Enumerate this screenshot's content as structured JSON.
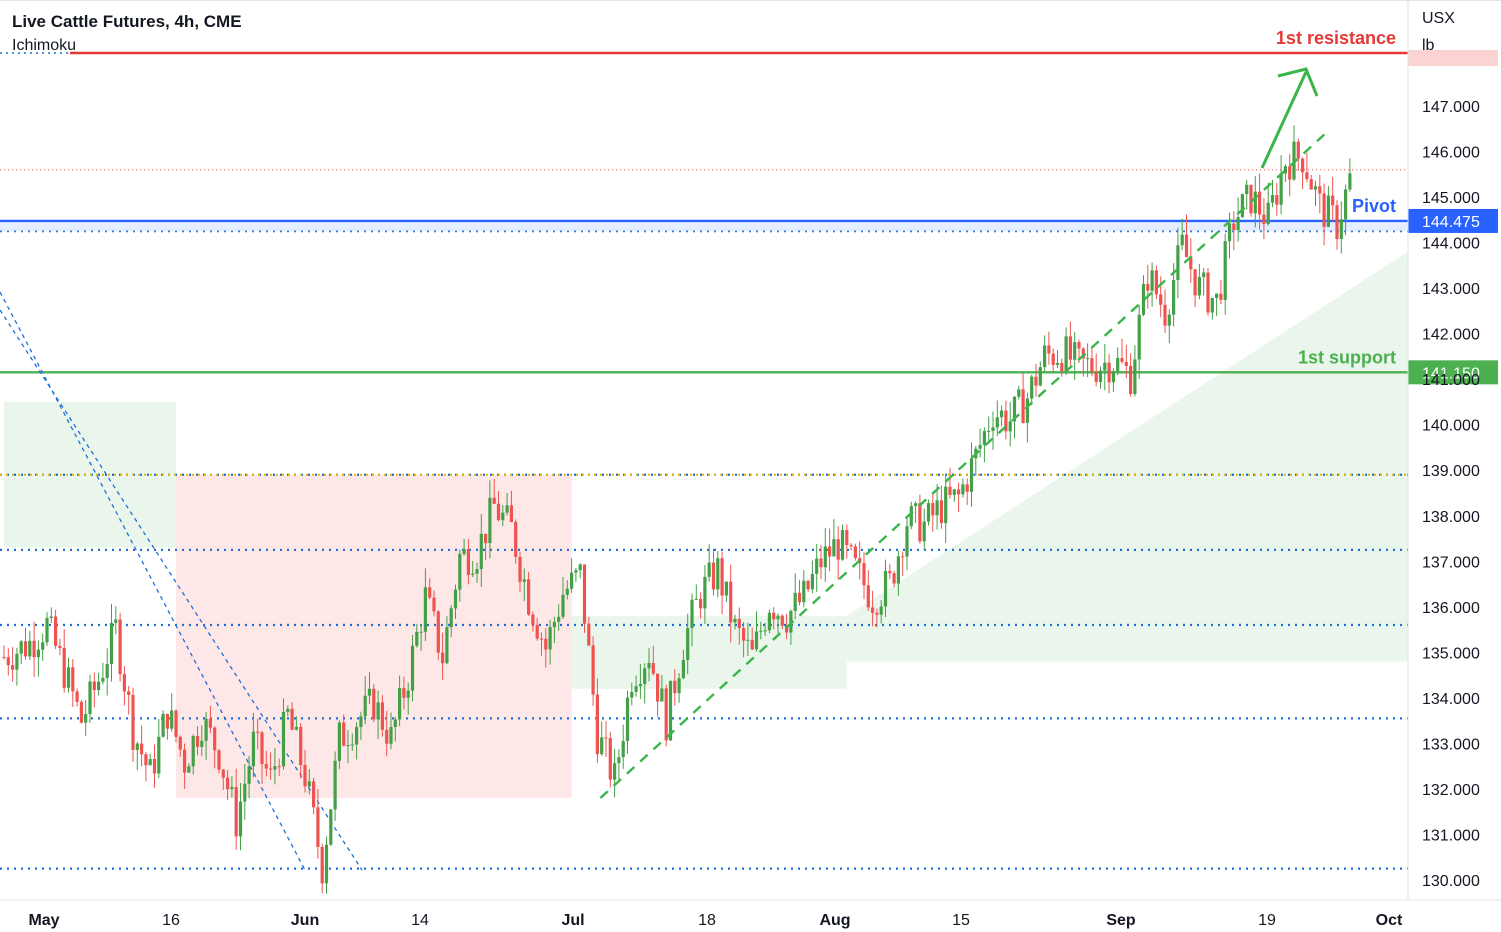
{
  "header": {
    "title": "Live Cattle Futures, 4h, CME",
    "indicator": "Ichimoku"
  },
  "units": [
    "USX",
    "lb"
  ],
  "colors": {
    "up": "#43a047",
    "down": "#ef5350",
    "resistance": "#e53935",
    "pivot": "#2962ff",
    "support": "#4caf50",
    "level_dotted": "#1e6fd9",
    "mid_dotted": "#e6b800",
    "cloud_bull": "#e8f5e9",
    "cloud_bear": "#fde4e4",
    "trend": "#3bb54a"
  },
  "chart_data": {
    "type": "candlestick",
    "title": "Live Cattle Futures, 4h, CME",
    "ylim": [
      129.7,
      147.7
    ],
    "y_ticks": [
      "130.000",
      "131.000",
      "132.000",
      "133.000",
      "134.000",
      "135.000",
      "136.000",
      "137.000",
      "138.000",
      "139.000",
      "140.000",
      "141.000",
      "142.000",
      "143.000",
      "144.000",
      "145.000",
      "146.000",
      "147.000"
    ],
    "x_ticks": [
      "May",
      "16",
      "Jun",
      "14",
      "Jul",
      "18",
      "Aug",
      "15",
      "Sep",
      "19",
      "Oct"
    ],
    "levels": [
      {
        "name": "1st resistance",
        "value": 147.7,
        "label": "1st resistance"
      },
      {
        "name": "Pivot",
        "value": 144.475,
        "label": "Pivot",
        "tag": "144.475"
      },
      {
        "name": "1st support",
        "value": 141.15,
        "label": "1st support",
        "tag": "141.150"
      }
    ],
    "dotted_levels": [
      144.25,
      138.9,
      137.25,
      135.6,
      133.55,
      130.25
    ],
    "last_close_dotted": 145.6,
    "close_path": [
      [
        0,
        134.9
      ],
      [
        6,
        135.2
      ],
      [
        10,
        135.6
      ],
      [
        14,
        134.6
      ],
      [
        18,
        133.5
      ],
      [
        22,
        134.4
      ],
      [
        26,
        135.5
      ],
      [
        30,
        133.3
      ],
      [
        34,
        132.3
      ],
      [
        38,
        133.7
      ],
      [
        42,
        132.6
      ],
      [
        46,
        133.5
      ],
      [
        50,
        132.8
      ],
      [
        54,
        131.3
      ],
      [
        58,
        133.0
      ],
      [
        62,
        132.2
      ],
      [
        66,
        133.6
      ],
      [
        70,
        132.3
      ],
      [
        74,
        130.3
      ],
      [
        78,
        133.1
      ],
      [
        82,
        133.5
      ],
      [
        86,
        133.9
      ],
      [
        90,
        133.1
      ],
      [
        94,
        134.5
      ],
      [
        98,
        136.2
      ],
      [
        102,
        134.9
      ],
      [
        106,
        137.1
      ],
      [
        110,
        137.2
      ],
      [
        114,
        138.2
      ],
      [
        118,
        137.7
      ],
      [
        122,
        136.2
      ],
      [
        126,
        135.1
      ],
      [
        130,
        136.3
      ],
      [
        134,
        136.7
      ],
      [
        138,
        133.2
      ],
      [
        142,
        132.2
      ],
      [
        146,
        134.5
      ],
      [
        150,
        135.0
      ],
      [
        154,
        133.5
      ],
      [
        158,
        135.2
      ],
      [
        162,
        136.3
      ],
      [
        166,
        136.8
      ],
      [
        170,
        135.5
      ],
      [
        174,
        134.9
      ],
      [
        178,
        136.1
      ],
      [
        182,
        135.8
      ],
      [
        186,
        136.2
      ],
      [
        190,
        137.0
      ],
      [
        194,
        137.4
      ],
      [
        198,
        136.8
      ],
      [
        202,
        136.2
      ],
      [
        206,
        136.5
      ],
      [
        210,
        137.9
      ],
      [
        214,
        137.8
      ],
      [
        218,
        138.2
      ],
      [
        222,
        138.4
      ],
      [
        226,
        139.3
      ],
      [
        230,
        140.3
      ],
      [
        234,
        140.1
      ],
      [
        238,
        140.6
      ],
      [
        242,
        141.5
      ],
      [
        246,
        141.6
      ],
      [
        250,
        141.3
      ],
      [
        254,
        141.3
      ],
      [
        258,
        141.4
      ],
      [
        262,
        141.1
      ],
      [
        266,
        143.3
      ],
      [
        270,
        142.5
      ],
      [
        274,
        143.9
      ],
      [
        278,
        143.0
      ],
      [
        282,
        142.7
      ],
      [
        286,
        144.5
      ],
      [
        290,
        145.0
      ],
      [
        294,
        144.5
      ],
      [
        298,
        145.8
      ],
      [
        302,
        145.9
      ],
      [
        306,
        144.8
      ],
      [
        310,
        144.4
      ],
      [
        314,
        145.7
      ]
    ],
    "ichimoku_cloud": [
      {
        "color": "bull",
        "x_start": 0,
        "x_end": 40,
        "top": 140.5,
        "bottom": 137.3
      },
      {
        "color": "bear",
        "x_start": 40,
        "x_end": 132,
        "top": 138.9,
        "bottom": 131.8
      },
      {
        "color": "bull",
        "x_start": 132,
        "x_end": 196,
        "top": 135.8,
        "bottom": 134.2
      },
      {
        "color": "bull",
        "x_start": 196,
        "x_end": 332,
        "top": 143.8,
        "bottom": 134.8
      }
    ],
    "trendlines": [
      {
        "style": "dashed",
        "from": [
          148,
          131.8
        ],
        "to": [
          330,
          144.4
        ]
      }
    ],
    "arrow": {
      "from": [
        314,
        145.7
      ],
      "to": [
        326,
        147.5
      ]
    }
  }
}
